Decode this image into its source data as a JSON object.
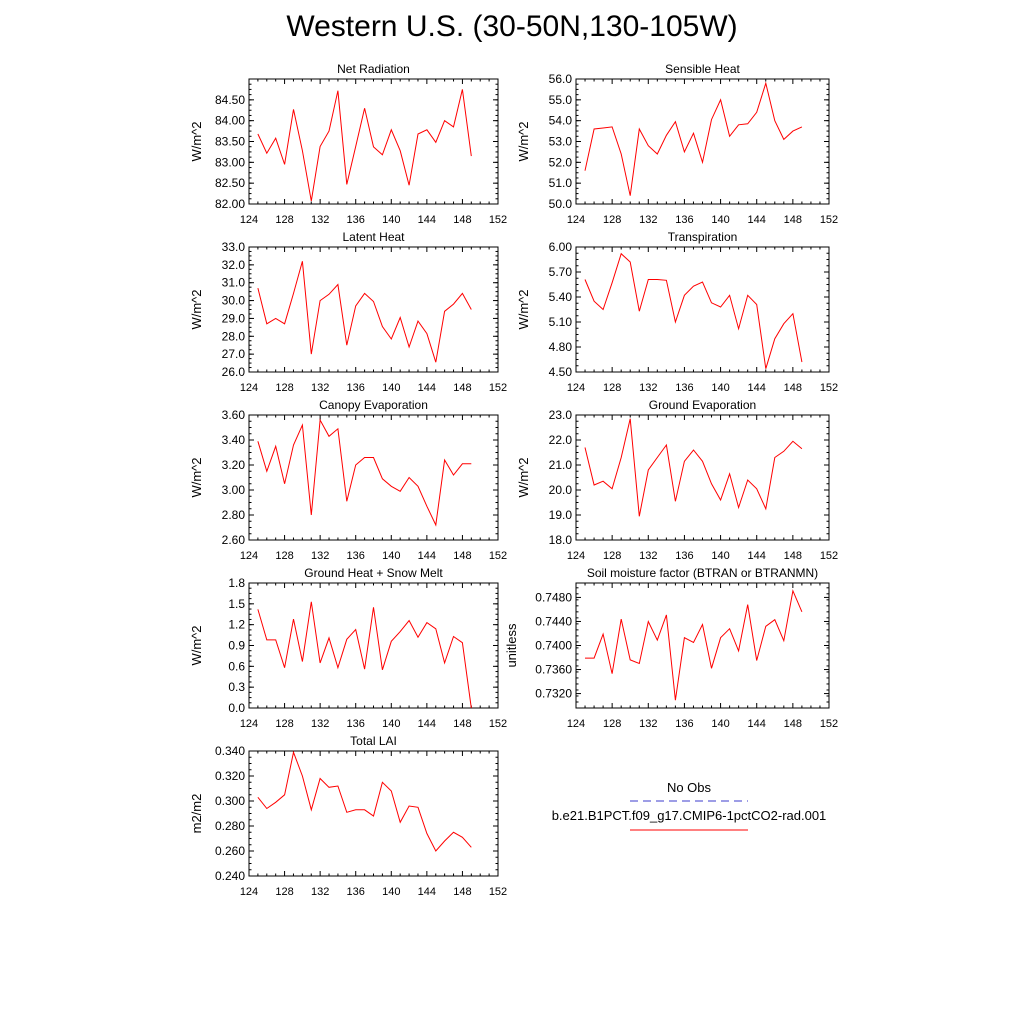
{
  "title": "Western U.S. (30-50N,130-105W)",
  "chart_data": [
    {
      "type": "line",
      "title": "Net Radiation",
      "ylabel": "W/m^2",
      "xlim": [
        124,
        152
      ],
      "ylim": [
        82.0,
        85.0
      ],
      "xticks": [
        "124",
        "128",
        "132",
        "136",
        "140",
        "144",
        "148",
        "152"
      ],
      "yticks": [
        "82.00",
        "82.50",
        "83.00",
        "83.50",
        "84.00",
        "84.50"
      ],
      "x": [
        125,
        126,
        127,
        128,
        129,
        130,
        131,
        132,
        133,
        134,
        135,
        136,
        137,
        138,
        139,
        140,
        141,
        142,
        143,
        144,
        145,
        146,
        147,
        148,
        149
      ],
      "values": [
        83.68,
        83.22,
        83.58,
        82.95,
        84.27,
        83.28,
        82.07,
        83.38,
        83.75,
        84.72,
        82.47,
        83.38,
        84.3,
        83.37,
        83.18,
        83.78,
        83.28,
        82.45,
        83.68,
        83.78,
        83.48,
        84.0,
        83.85,
        84.75,
        83.15
      ]
    },
    {
      "type": "line",
      "title": "Sensible Heat",
      "ylabel": "W/m^2",
      "xlim": [
        124,
        152
      ],
      "ylim": [
        50.0,
        56.0
      ],
      "xticks": [
        "124",
        "128",
        "132",
        "136",
        "140",
        "144",
        "148",
        "152"
      ],
      "yticks": [
        "50.0",
        "51.0",
        "52.0",
        "53.0",
        "54.0",
        "55.0",
        "56.0"
      ],
      "x": [
        125,
        126,
        127,
        128,
        129,
        130,
        131,
        132,
        133,
        134,
        135,
        136,
        137,
        138,
        139,
        140,
        141,
        142,
        143,
        144,
        145,
        146,
        147,
        148,
        149
      ],
      "values": [
        51.6,
        53.6,
        53.65,
        53.7,
        52.4,
        50.4,
        53.6,
        52.8,
        52.4,
        53.3,
        53.95,
        52.5,
        53.4,
        52.0,
        54.05,
        55.0,
        53.25,
        53.8,
        53.85,
        54.4,
        55.8,
        54.0,
        53.1,
        53.5,
        53.7
      ]
    },
    {
      "type": "line",
      "title": "Latent Heat",
      "ylabel": "W/m^2",
      "xlim": [
        124,
        152
      ],
      "ylim": [
        26.0,
        33.0
      ],
      "xticks": [
        "124",
        "128",
        "132",
        "136",
        "140",
        "144",
        "148",
        "152"
      ],
      "yticks": [
        "26.0",
        "27.0",
        "28.0",
        "29.0",
        "30.0",
        "31.0",
        "32.0",
        "33.0"
      ],
      "x": [
        125,
        126,
        127,
        128,
        129,
        130,
        131,
        132,
        133,
        134,
        135,
        136,
        137,
        138,
        139,
        140,
        141,
        142,
        143,
        144,
        145,
        146,
        147,
        148,
        149
      ],
      "values": [
        30.7,
        28.7,
        29.0,
        28.7,
        30.4,
        32.2,
        27.0,
        30.0,
        30.35,
        30.9,
        27.5,
        29.7,
        30.4,
        29.95,
        28.55,
        27.85,
        29.05,
        27.4,
        28.85,
        28.15,
        26.55,
        29.4,
        29.8,
        30.4,
        29.5
      ]
    },
    {
      "type": "line",
      "title": "Transpiration",
      "ylabel": "W/m^2",
      "xlim": [
        124,
        152
      ],
      "ylim": [
        4.5,
        6.0
      ],
      "xticks": [
        "124",
        "128",
        "132",
        "136",
        "140",
        "144",
        "148",
        "152"
      ],
      "yticks": [
        "4.50",
        "4.80",
        "5.10",
        "5.40",
        "5.70",
        "6.00"
      ],
      "x": [
        125,
        126,
        127,
        128,
        129,
        130,
        131,
        132,
        133,
        134,
        135,
        136,
        137,
        138,
        139,
        140,
        141,
        142,
        143,
        144,
        145,
        146,
        147,
        148,
        149
      ],
      "values": [
        5.61,
        5.35,
        5.25,
        5.57,
        5.92,
        5.82,
        5.23,
        5.61,
        5.61,
        5.6,
        5.1,
        5.42,
        5.53,
        5.58,
        5.33,
        5.28,
        5.42,
        5.02,
        5.42,
        5.31,
        4.54,
        4.9,
        5.08,
        5.2,
        4.62
      ]
    },
    {
      "type": "line",
      "title": "Canopy Evaporation",
      "ylabel": "W/m^2",
      "xlim": [
        124,
        152
      ],
      "ylim": [
        2.6,
        3.6
      ],
      "xticks": [
        "124",
        "128",
        "132",
        "136",
        "140",
        "144",
        "148",
        "152"
      ],
      "yticks": [
        "2.60",
        "2.80",
        "3.00",
        "3.20",
        "3.40",
        "3.60"
      ],
      "x": [
        125,
        126,
        127,
        128,
        129,
        130,
        131,
        132,
        133,
        134,
        135,
        136,
        137,
        138,
        139,
        140,
        141,
        142,
        143,
        144,
        145,
        146,
        147,
        148,
        149
      ],
      "values": [
        3.39,
        3.15,
        3.35,
        3.05,
        3.36,
        3.52,
        2.8,
        3.56,
        3.43,
        3.49,
        2.91,
        3.2,
        3.26,
        3.26,
        3.09,
        3.03,
        2.99,
        3.1,
        3.03,
        2.87,
        2.72,
        3.24,
        3.12,
        3.21,
        3.21
      ]
    },
    {
      "type": "line",
      "title": "Ground Evaporation",
      "ylabel": "W/m^2",
      "xlim": [
        124,
        152
      ],
      "ylim": [
        18.0,
        23.0
      ],
      "xticks": [
        "124",
        "128",
        "132",
        "136",
        "140",
        "144",
        "148",
        "152"
      ],
      "yticks": [
        "18.0",
        "19.0",
        "20.0",
        "21.0",
        "22.0",
        "23.0"
      ],
      "x": [
        125,
        126,
        127,
        128,
        129,
        130,
        131,
        132,
        133,
        134,
        135,
        136,
        137,
        138,
        139,
        140,
        141,
        142,
        143,
        144,
        145,
        146,
        147,
        148,
        149
      ],
      "values": [
        21.7,
        20.2,
        20.35,
        20.05,
        21.3,
        22.85,
        18.95,
        20.8,
        21.3,
        21.8,
        19.55,
        21.15,
        21.6,
        21.15,
        20.25,
        19.6,
        20.65,
        19.3,
        20.4,
        20.05,
        19.25,
        21.3,
        21.55,
        21.95,
        21.65
      ]
    },
    {
      "type": "line",
      "title": "Ground Heat + Snow Melt",
      "ylabel": "W/m^2",
      "xlim": [
        124,
        152
      ],
      "ylim": [
        0.0,
        1.8
      ],
      "xticks": [
        "124",
        "128",
        "132",
        "136",
        "140",
        "144",
        "148",
        "152"
      ],
      "yticks": [
        "0.0",
        "0.3",
        "0.6",
        "0.9",
        "1.2",
        "1.5",
        "1.8"
      ],
      "x": [
        125,
        126,
        127,
        128,
        129,
        130,
        131,
        132,
        133,
        134,
        135,
        136,
        137,
        138,
        139,
        140,
        141,
        142,
        143,
        144,
        145,
        146,
        147,
        148,
        149
      ],
      "values": [
        1.42,
        0.98,
        0.98,
        0.58,
        1.28,
        0.67,
        1.53,
        0.65,
        1.01,
        0.58,
        0.99,
        1.13,
        0.56,
        1.45,
        0.55,
        0.96,
        1.1,
        1.26,
        1.02,
        1.23,
        1.14,
        0.65,
        1.03,
        0.94,
        0.0
      ]
    },
    {
      "type": "line",
      "title": "Soil moisture factor (BTRAN or BTRANMN)",
      "ylabel": "unitless",
      "xlim": [
        124,
        152
      ],
      "ylim": [
        0.7296,
        0.7504
      ],
      "xticks": [
        "124",
        "128",
        "132",
        "136",
        "140",
        "144",
        "148",
        "152"
      ],
      "yticks": [
        "0.7320",
        "0.7360",
        "0.7400",
        "0.7440",
        "0.7480"
      ],
      "x": [
        125,
        126,
        127,
        128,
        129,
        130,
        131,
        132,
        133,
        134,
        135,
        136,
        137,
        138,
        139,
        140,
        141,
        142,
        143,
        144,
        145,
        146,
        147,
        148,
        149
      ],
      "values": [
        0.7379,
        0.7379,
        0.7419,
        0.7353,
        0.7444,
        0.7376,
        0.737,
        0.744,
        0.7409,
        0.7451,
        0.7309,
        0.7413,
        0.7405,
        0.7435,
        0.7362,
        0.7413,
        0.7428,
        0.7391,
        0.7468,
        0.7375,
        0.7432,
        0.7443,
        0.7408,
        0.7491,
        0.7456
      ]
    },
    {
      "type": "line",
      "title": "Total LAI",
      "ylabel": "m2/m2",
      "xlim": [
        124,
        152
      ],
      "ylim": [
        0.24,
        0.34
      ],
      "xticks": [
        "124",
        "128",
        "132",
        "136",
        "140",
        "144",
        "148",
        "152"
      ],
      "yticks": [
        "0.240",
        "0.260",
        "0.280",
        "0.300",
        "0.320",
        "0.340"
      ],
      "x": [
        125,
        126,
        127,
        128,
        129,
        130,
        131,
        132,
        133,
        134,
        135,
        136,
        137,
        138,
        139,
        140,
        141,
        142,
        143,
        144,
        145,
        146,
        147,
        148,
        149
      ],
      "values": [
        0.303,
        0.294,
        0.299,
        0.305,
        0.339,
        0.32,
        0.293,
        0.318,
        0.311,
        0.312,
        0.291,
        0.293,
        0.293,
        0.288,
        0.315,
        0.308,
        0.283,
        0.296,
        0.295,
        0.274,
        0.26,
        0.268,
        0.275,
        0.271,
        0.263
      ]
    }
  ],
  "legend": {
    "items": [
      {
        "label": "No Obs",
        "color": "#3b3bcc",
        "style": "dashed"
      },
      {
        "label": "b.e21.B1PCT.f09_g17.CMIP6-1pctCO2-rad.001",
        "color": "#ff0000",
        "style": "solid"
      }
    ]
  },
  "colors": {
    "series": "#ff0000",
    "axis": "#000000"
  }
}
